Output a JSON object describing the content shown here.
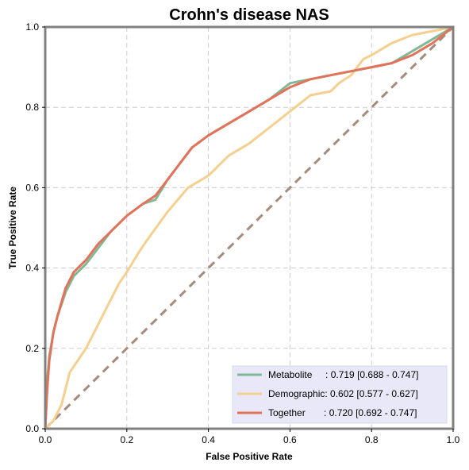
{
  "chart_data": {
    "type": "line",
    "title": "Crohn's disease NAS",
    "xlabel": "False Positive Rate",
    "ylabel": "True Positive Rate",
    "xlim": [
      0,
      1
    ],
    "ylim": [
      0,
      1
    ],
    "xticks": [
      "0.0",
      "0.2",
      "0.4",
      "0.6",
      "0.8",
      "1.0"
    ],
    "yticks": [
      "0.0",
      "0.2",
      "0.4",
      "0.6",
      "0.8",
      "1.0"
    ],
    "grid": true,
    "legend_position": "lower-right",
    "chance_line_color": "#a68a7b",
    "series": [
      {
        "name": "Metabolite",
        "legend_label": "Metabolite     : 0.719 [0.688 - 0.747]",
        "color": "#82b897",
        "x": [
          0,
          0.005,
          0.01,
          0.02,
          0.03,
          0.05,
          0.07,
          0.1,
          0.13,
          0.16,
          0.2,
          0.24,
          0.27,
          0.3,
          0.33,
          0.36,
          0.4,
          0.45,
          0.5,
          0.55,
          0.6,
          0.65,
          0.7,
          0.75,
          0.8,
          0.85,
          0.9,
          0.95,
          1.0
        ],
        "y": [
          0,
          0.12,
          0.18,
          0.24,
          0.28,
          0.34,
          0.38,
          0.41,
          0.45,
          0.49,
          0.53,
          0.56,
          0.57,
          0.62,
          0.66,
          0.7,
          0.73,
          0.76,
          0.79,
          0.82,
          0.86,
          0.87,
          0.88,
          0.89,
          0.9,
          0.91,
          0.94,
          0.97,
          1.0
        ]
      },
      {
        "name": "Demographic",
        "legend_label": "Demographic: 0.602 [0.577 - 0.627]",
        "color": "#f5cf8f",
        "x": [
          0,
          0.02,
          0.04,
          0.06,
          0.08,
          0.1,
          0.12,
          0.15,
          0.18,
          0.2,
          0.23,
          0.25,
          0.3,
          0.35,
          0.4,
          0.45,
          0.5,
          0.55,
          0.6,
          0.65,
          0.7,
          0.72,
          0.75,
          0.78,
          0.8,
          0.85,
          0.9,
          0.95,
          1.0
        ],
        "y": [
          0,
          0.02,
          0.06,
          0.14,
          0.17,
          0.2,
          0.24,
          0.3,
          0.36,
          0.39,
          0.44,
          0.47,
          0.54,
          0.6,
          0.63,
          0.68,
          0.71,
          0.75,
          0.79,
          0.83,
          0.84,
          0.86,
          0.88,
          0.92,
          0.93,
          0.96,
          0.98,
          0.99,
          1.0
        ]
      },
      {
        "name": "Together",
        "legend_label": "Together       : 0.720 [0.692 - 0.747]",
        "color": "#e1735a",
        "x": [
          0,
          0.005,
          0.01,
          0.02,
          0.03,
          0.05,
          0.07,
          0.1,
          0.13,
          0.16,
          0.2,
          0.24,
          0.27,
          0.3,
          0.33,
          0.36,
          0.4,
          0.45,
          0.5,
          0.55,
          0.6,
          0.65,
          0.7,
          0.75,
          0.8,
          0.85,
          0.9,
          0.95,
          1.0
        ],
        "y": [
          0,
          0.1,
          0.17,
          0.24,
          0.28,
          0.35,
          0.39,
          0.42,
          0.46,
          0.49,
          0.53,
          0.56,
          0.58,
          0.62,
          0.66,
          0.7,
          0.73,
          0.76,
          0.79,
          0.82,
          0.85,
          0.87,
          0.88,
          0.89,
          0.9,
          0.91,
          0.93,
          0.96,
          1.0
        ]
      }
    ]
  }
}
